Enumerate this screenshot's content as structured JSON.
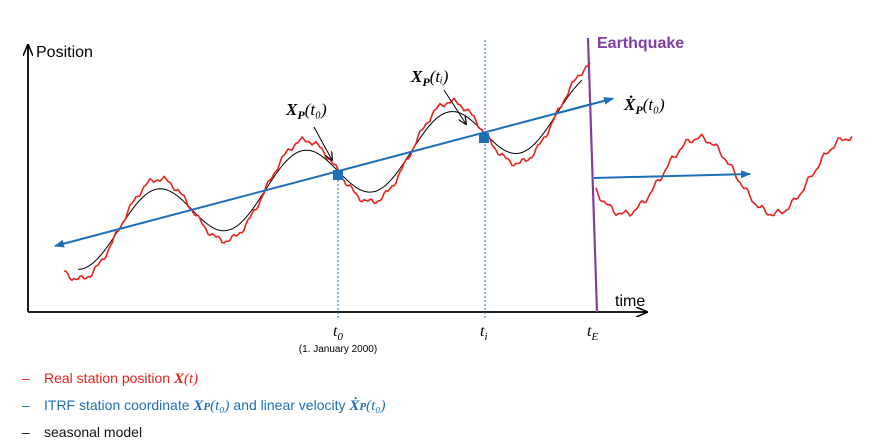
{
  "axes": {
    "y_label": "Position",
    "x_label": "time"
  },
  "event": {
    "label": "Earthquake"
  },
  "annotations": {
    "xp_t0": {
      "bold": "X",
      "sub": "P",
      "arg": "(t₀)"
    },
    "xp_ti": {
      "bold": "X",
      "sub": "P",
      "arg": "(tᵢ)"
    },
    "xp_dot_t0": {
      "bold": "Ẋ",
      "sub": "P",
      "arg": "(t₀)"
    }
  },
  "ticks": {
    "t0": {
      "main": "t",
      "sub": "0"
    },
    "t0_note": "(1. January 2000)",
    "ti": {
      "main": "t",
      "sub": "i"
    },
    "tE": {
      "main": "t",
      "sub": "E"
    }
  },
  "legend": [
    {
      "dash": "–",
      "color": "#e8211b",
      "text": "Real station position ",
      "math_bold": "X",
      "math_rest": "(t)"
    },
    {
      "dash": "–",
      "color": "#1d6fb8",
      "text": "ITRF station coordinate ",
      "math1_bold": "X",
      "math1_sub": "P",
      "math1_rest": "(t₀)",
      "mid": " and linear velocity ",
      "math2_bold": "Ẋ",
      "math2_sub": "P",
      "math2_rest": "(t₀)"
    },
    {
      "dash": "–",
      "color": "#111111",
      "text": "seasonal model"
    }
  ],
  "colors": {
    "real_position": "#e8211b",
    "itrf_linear": "#1d6fb8",
    "seasonal": "#000000",
    "earthquake": "#7f3fa0",
    "axis": "#000000"
  }
}
